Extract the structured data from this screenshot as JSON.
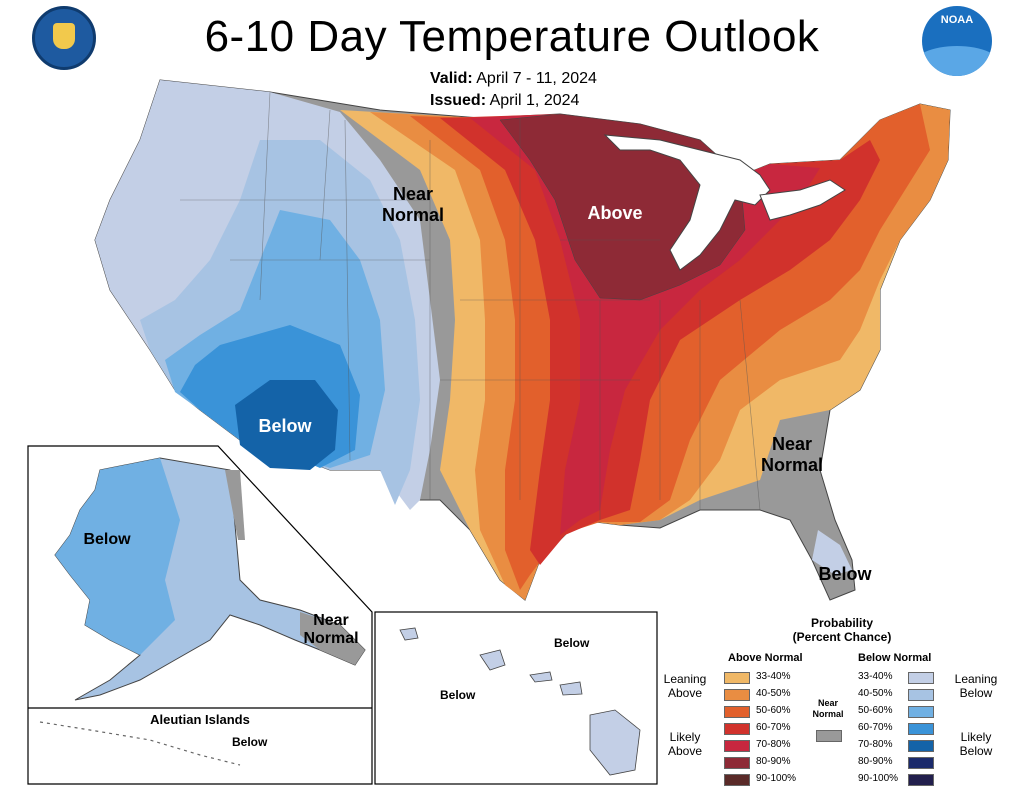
{
  "title": "6-10 Day Temperature Outlook",
  "valid": {
    "label": "Valid:",
    "value": "April 7 - 11, 2024"
  },
  "issued": {
    "label": "Issued:",
    "value": "April 1, 2024"
  },
  "map_labels": {
    "near_normal_north": "Near Normal",
    "above": "Above",
    "below_southwest": "Below",
    "near_normal_southeast": "Near Normal",
    "below_florida": "Below",
    "below_alaska": "Below",
    "near_normal_alaska": "Near Normal",
    "aleutian_title": "Aleutian Islands",
    "below_aleutian": "Below",
    "below_hawaii_north": "Below",
    "below_hawaii_west": "Below"
  },
  "legend": {
    "title_line1": "Probability",
    "title_line2": "(Percent Chance)",
    "above_header": "Above Normal",
    "below_header": "Below Normal",
    "near_normal": "Near Normal",
    "leaning_above": "Leaning Above",
    "likely_above": "Likely Above",
    "leaning_below": "Leaning Below",
    "likely_below": "Likely Below",
    "above_items": [
      {
        "range": "33-40%",
        "color": "#f0b867"
      },
      {
        "range": "40-50%",
        "color": "#e98d42"
      },
      {
        "range": "50-60%",
        "color": "#e2602c"
      },
      {
        "range": "60-70%",
        "color": "#d1322c"
      },
      {
        "range": "70-80%",
        "color": "#c8273f"
      },
      {
        "range": "80-90%",
        "color": "#8e2a36"
      },
      {
        "range": "90-100%",
        "color": "#5a2a28"
      }
    ],
    "below_items": [
      {
        "range": "33-40%",
        "color": "#c3cfe6"
      },
      {
        "range": "40-50%",
        "color": "#a7c3e3"
      },
      {
        "range": "50-60%",
        "color": "#70b0e3"
      },
      {
        "range": "60-70%",
        "color": "#3a93d8"
      },
      {
        "range": "70-80%",
        "color": "#1463a8"
      },
      {
        "range": "80-90%",
        "color": "#1b2a6b"
      },
      {
        "range": "90-100%",
        "color": "#221f4d"
      }
    ],
    "near_normal_color": "#999999"
  },
  "logos": {
    "left": "department-of-commerce-seal",
    "right": "noaa-logo",
    "noaa_text": "NOAA"
  }
}
